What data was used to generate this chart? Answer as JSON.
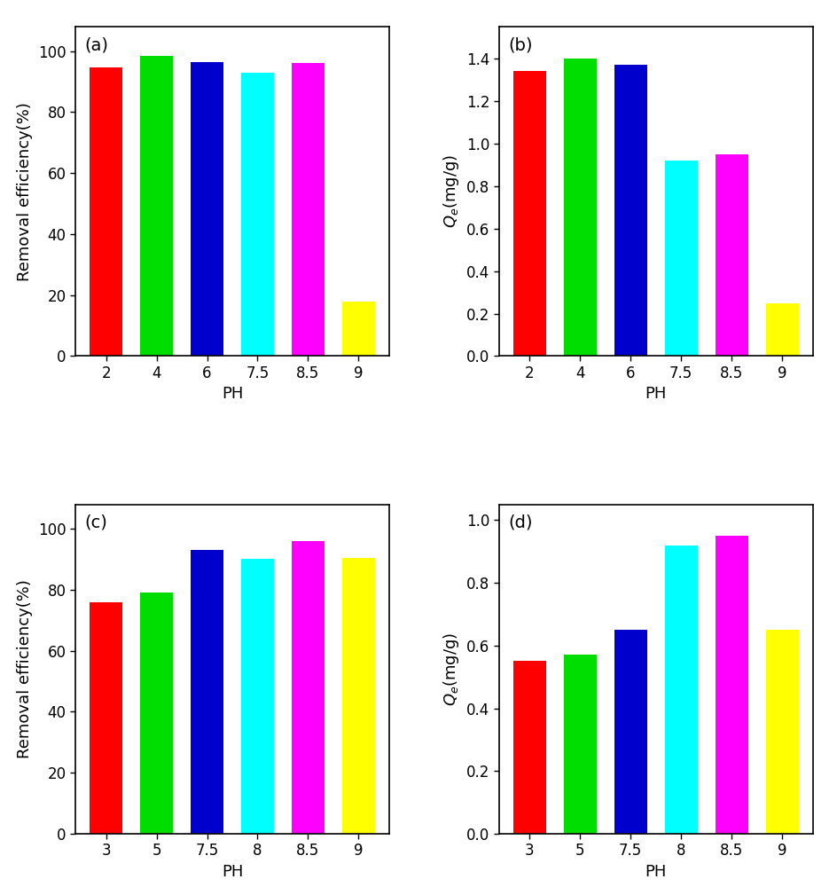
{
  "subplot_a": {
    "label": "(a)",
    "categories": [
      "2",
      "4",
      "6",
      "7.5",
      "8.5",
      "9"
    ],
    "values": [
      94.5,
      98.5,
      96.5,
      93.0,
      96.0,
      18.0
    ],
    "colors": [
      "#ff0000",
      "#00dd00",
      "#0000cc",
      "#00ffff",
      "#ff00ff",
      "#ffff00"
    ],
    "ylabel": "Removal efficiency(%)",
    "xlabel": "PH",
    "ylim": [
      0,
      108
    ],
    "yticks": [
      0,
      20,
      40,
      60,
      80,
      100
    ]
  },
  "subplot_b": {
    "label": "(b)",
    "categories": [
      "2",
      "4",
      "6",
      "7.5",
      "8.5",
      "9"
    ],
    "values": [
      1.34,
      1.4,
      1.37,
      0.92,
      0.95,
      0.25
    ],
    "colors": [
      "#ff0000",
      "#00dd00",
      "#0000cc",
      "#00ffff",
      "#ff00ff",
      "#ffff00"
    ],
    "ylabel": "Q_e(mg/g)",
    "xlabel": "PH",
    "ylim": [
      0,
      1.55
    ],
    "yticks": [
      0.0,
      0.2,
      0.4,
      0.6,
      0.8,
      1.0,
      1.2,
      1.4
    ]
  },
  "subplot_c": {
    "label": "(c)",
    "categories": [
      "3",
      "5",
      "7.5",
      "8",
      "8.5",
      "9"
    ],
    "values": [
      76.0,
      79.0,
      93.0,
      90.0,
      96.0,
      90.5
    ],
    "colors": [
      "#ff0000",
      "#00dd00",
      "#0000cc",
      "#00ffff",
      "#ff00ff",
      "#ffff00"
    ],
    "ylabel": "Removal efficiency(%)",
    "xlabel": "PH",
    "ylim": [
      0,
      108
    ],
    "yticks": [
      0,
      20,
      40,
      60,
      80,
      100
    ]
  },
  "subplot_d": {
    "label": "(d)",
    "categories": [
      "3",
      "5",
      "7.5",
      "8",
      "8.5",
      "9"
    ],
    "values": [
      0.55,
      0.57,
      0.65,
      0.92,
      0.95,
      0.65
    ],
    "colors": [
      "#ff0000",
      "#00dd00",
      "#0000cc",
      "#00ffff",
      "#ff00ff",
      "#ffff00"
    ],
    "ylabel": "Q_e(mg/g)",
    "xlabel": "PH",
    "ylim": [
      0,
      1.05
    ],
    "yticks": [
      0.0,
      0.2,
      0.4,
      0.6,
      0.8,
      1.0
    ]
  },
  "background_color": "#ffffff",
  "axes_bg_color": "#ffffff",
  "bar_edge_color": "none",
  "label_fontsize": 14,
  "tick_fontsize": 12,
  "axes_label_fontsize": 13,
  "bar_width": 0.65
}
